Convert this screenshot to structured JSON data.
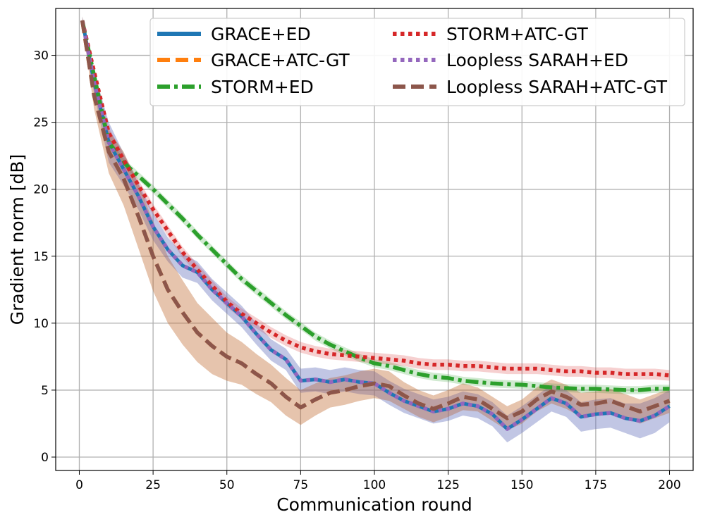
{
  "chart_data": {
    "type": "line",
    "title": "",
    "xlabel": "Communication round",
    "ylabel": "Gradient norm [dB]",
    "xlim": [
      -8,
      208
    ],
    "ylim": [
      -1,
      33.5
    ],
    "x_ticks": [
      0,
      25,
      50,
      75,
      100,
      125,
      150,
      175,
      200
    ],
    "y_ticks": [
      0,
      5,
      10,
      15,
      20,
      25,
      30
    ],
    "grid": true,
    "legend_position": "top-right",
    "legend_columns": 2,
    "x": [
      1,
      5,
      10,
      15,
      20,
      25,
      30,
      35,
      40,
      45,
      50,
      55,
      60,
      65,
      70,
      75,
      80,
      85,
      90,
      95,
      100,
      105,
      110,
      115,
      120,
      125,
      130,
      135,
      140,
      145,
      150,
      155,
      160,
      165,
      170,
      175,
      180,
      185,
      190,
      195,
      200
    ],
    "series": [
      {
        "name": "GRACE+ED",
        "color": "#1f77b4",
        "style": "solid",
        "values": [
          32.6,
          28.0,
          23.5,
          21.5,
          19.5,
          17.2,
          15.5,
          14.3,
          13.8,
          12.5,
          11.5,
          10.5,
          9.2,
          8.0,
          7.3,
          5.7,
          5.8,
          5.6,
          5.8,
          5.6,
          5.5,
          4.8,
          4.2,
          3.8,
          3.4,
          3.6,
          4.0,
          3.8,
          3.2,
          2.1,
          2.8,
          3.6,
          4.4,
          4.0,
          3.0,
          3.2,
          3.3,
          2.9,
          2.7,
          3.1,
          3.8
        ],
        "band": [
          0.3,
          0.8,
          1.5,
          1.2,
          1.0,
          1.0,
          0.9,
          0.9,
          0.8,
          0.8,
          0.8,
          0.8,
          0.8,
          0.8,
          0.8,
          0.9,
          0.9,
          0.9,
          0.9,
          0.9,
          0.9,
          0.9,
          0.9,
          0.9,
          0.9,
          0.9,
          0.9,
          0.9,
          0.9,
          1.0,
          1.0,
          1.0,
          1.0,
          1.0,
          1.1,
          1.1,
          1.1,
          1.1,
          1.3,
          1.3,
          1.2
        ]
      },
      {
        "name": "GRACE+ATC-GT",
        "color": "#ff7f0e",
        "style": "dashed",
        "values": [
          32.6,
          27.0,
          22.8,
          20.8,
          18.0,
          15.0,
          12.5,
          10.8,
          9.3,
          8.3,
          7.5,
          7.0,
          6.2,
          5.5,
          4.5,
          3.7,
          4.3,
          4.8,
          5.0,
          5.3,
          5.5,
          5.3,
          4.6,
          4.0,
          3.6,
          4.0,
          4.5,
          4.3,
          3.6,
          2.9,
          3.4,
          4.3,
          4.9,
          4.5,
          3.9,
          4.0,
          4.2,
          3.8,
          3.4,
          3.8,
          4.2
        ],
        "band": [
          0.3,
          1.0,
          1.6,
          2.0,
          2.4,
          2.6,
          2.5,
          2.4,
          2.2,
          2.1,
          1.8,
          1.6,
          1.5,
          1.4,
          1.4,
          1.3,
          1.2,
          1.1,
          1.1,
          1.1,
          1.1,
          1.1,
          1.0,
          1.0,
          1.0,
          1.0,
          1.0,
          0.9,
          0.9,
          0.9,
          0.9,
          0.9,
          0.9,
          0.9,
          0.9,
          0.9,
          0.9,
          0.9,
          0.9,
          0.9,
          0.9
        ]
      },
      {
        "name": "STORM+ED",
        "color": "#2ca02c",
        "style": "dashdot",
        "values": [
          32.6,
          28.5,
          23.5,
          22.0,
          21.0,
          20.0,
          18.9,
          17.8,
          16.6,
          15.5,
          14.4,
          13.3,
          12.4,
          11.5,
          10.6,
          9.8,
          9.0,
          8.4,
          7.9,
          7.4,
          7.0,
          6.8,
          6.5,
          6.2,
          6.0,
          5.9,
          5.7,
          5.6,
          5.5,
          5.45,
          5.4,
          5.3,
          5.2,
          5.15,
          5.1,
          5.1,
          5.05,
          5.0,
          5.0,
          5.1,
          5.1
        ],
        "band": [
          0.1,
          0.2,
          0.3,
          0.3,
          0.3,
          0.3,
          0.3,
          0.3,
          0.3,
          0.3,
          0.3,
          0.3,
          0.3,
          0.3,
          0.3,
          0.3,
          0.3,
          0.3,
          0.3,
          0.3,
          0.3,
          0.3,
          0.3,
          0.3,
          0.3,
          0.3,
          0.3,
          0.3,
          0.3,
          0.3,
          0.3,
          0.3,
          0.3,
          0.3,
          0.3,
          0.3,
          0.3,
          0.3,
          0.3,
          0.3,
          0.3
        ]
      },
      {
        "name": "STORM+ATC-GT",
        "color": "#d62728",
        "style": "dotted",
        "values": [
          32.6,
          28.8,
          24.2,
          22.2,
          20.3,
          18.5,
          16.9,
          15.3,
          14.0,
          12.8,
          11.6,
          10.7,
          10.0,
          9.3,
          8.7,
          8.2,
          7.9,
          7.7,
          7.6,
          7.5,
          7.4,
          7.3,
          7.2,
          7.0,
          6.9,
          6.9,
          6.8,
          6.8,
          6.7,
          6.6,
          6.6,
          6.6,
          6.5,
          6.4,
          6.4,
          6.3,
          6.3,
          6.2,
          6.2,
          6.2,
          6.1
        ],
        "band": [
          0.1,
          0.3,
          0.4,
          0.4,
          0.4,
          0.4,
          0.4,
          0.4,
          0.4,
          0.4,
          0.4,
          0.4,
          0.4,
          0.4,
          0.4,
          0.4,
          0.4,
          0.4,
          0.4,
          0.4,
          0.4,
          0.4,
          0.4,
          0.4,
          0.4,
          0.4,
          0.4,
          0.4,
          0.4,
          0.4,
          0.4,
          0.4,
          0.4,
          0.4,
          0.4,
          0.4,
          0.4,
          0.4,
          0.4,
          0.4,
          0.4
        ]
      },
      {
        "name": "Loopless SARAH+ED",
        "color": "#9467bd",
        "style": "dotted",
        "values": [
          32.6,
          28.0,
          23.5,
          21.5,
          19.5,
          17.2,
          15.5,
          14.3,
          13.8,
          12.5,
          11.5,
          10.5,
          9.2,
          8.0,
          7.3,
          5.7,
          5.8,
          5.6,
          5.8,
          5.6,
          5.5,
          4.8,
          4.2,
          3.8,
          3.4,
          3.6,
          4.0,
          3.8,
          3.2,
          2.1,
          2.8,
          3.6,
          4.4,
          4.0,
          3.0,
          3.2,
          3.3,
          2.9,
          2.7,
          3.1,
          3.8
        ],
        "band": [
          0.3,
          0.8,
          1.5,
          1.2,
          1.0,
          1.0,
          0.9,
          0.9,
          0.8,
          0.8,
          0.8,
          0.8,
          0.8,
          0.8,
          0.8,
          0.9,
          0.9,
          0.9,
          0.9,
          0.9,
          0.9,
          0.9,
          0.9,
          0.9,
          0.9,
          0.9,
          0.9,
          0.9,
          0.9,
          1.0,
          1.0,
          1.0,
          1.0,
          1.0,
          1.1,
          1.1,
          1.1,
          1.1,
          1.3,
          1.3,
          1.2
        ]
      },
      {
        "name": "Loopless SARAH+ATC-GT",
        "color": "#8c564b",
        "style": "dashed",
        "values": [
          32.6,
          27.0,
          22.8,
          20.8,
          18.0,
          15.0,
          12.5,
          10.8,
          9.3,
          8.3,
          7.5,
          7.0,
          6.2,
          5.5,
          4.5,
          3.7,
          4.3,
          4.8,
          5.0,
          5.3,
          5.5,
          5.3,
          4.6,
          4.0,
          3.6,
          4.0,
          4.5,
          4.3,
          3.6,
          2.9,
          3.4,
          4.3,
          4.9,
          4.5,
          3.9,
          4.0,
          4.2,
          3.8,
          3.4,
          3.8,
          4.2
        ],
        "band": [
          0.3,
          1.0,
          1.6,
          2.0,
          2.4,
          2.6,
          2.5,
          2.4,
          2.2,
          2.1,
          1.8,
          1.6,
          1.5,
          1.4,
          1.4,
          1.3,
          1.2,
          1.1,
          1.1,
          1.1,
          1.1,
          1.1,
          1.0,
          1.0,
          1.0,
          1.0,
          1.0,
          0.9,
          0.9,
          0.9,
          0.9,
          0.9,
          0.9,
          0.9,
          0.9,
          0.9,
          0.9,
          0.9,
          0.9,
          0.9,
          0.9
        ]
      }
    ]
  }
}
